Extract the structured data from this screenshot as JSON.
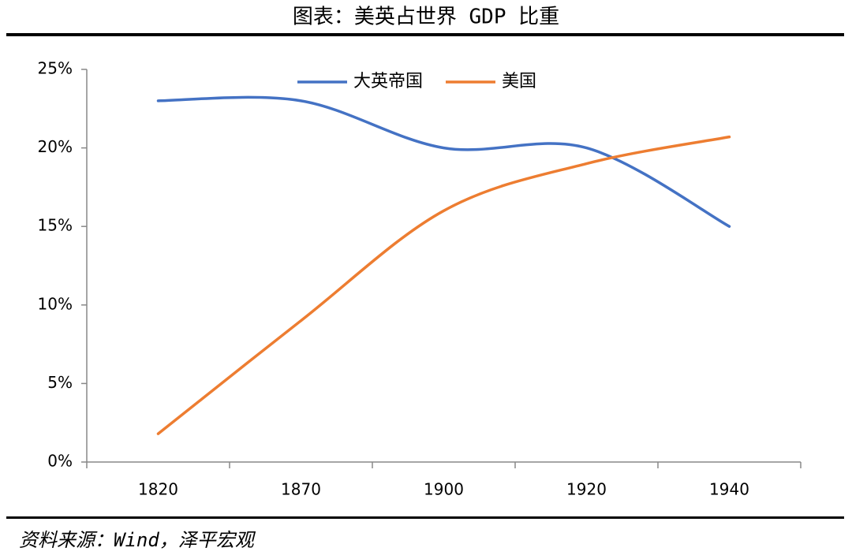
{
  "chart_data": {
    "type": "line",
    "title": "图表：美英占世界 GDP 比重",
    "source": "资料来源：Wind，泽平宏观",
    "categories": [
      "1820",
      "1870",
      "1900",
      "1920",
      "1940"
    ],
    "series": [
      {
        "name": "大英帝国",
        "color": "#4472c4",
        "values": [
          23,
          23,
          20,
          20,
          15
        ]
      },
      {
        "name": "美国",
        "color": "#ed7d31",
        "values": [
          1.8,
          9,
          16,
          19,
          20.7
        ]
      }
    ],
    "ylim": [
      0,
      25
    ],
    "yticks": [
      {
        "value": 0,
        "label": "0%"
      },
      {
        "value": 5,
        "label": "5%"
      },
      {
        "value": 10,
        "label": "10%"
      },
      {
        "value": 15,
        "label": "15%"
      },
      {
        "value": 20,
        "label": "20%"
      },
      {
        "value": 25,
        "label": "25%"
      }
    ],
    "grid": false,
    "legend": "top"
  }
}
